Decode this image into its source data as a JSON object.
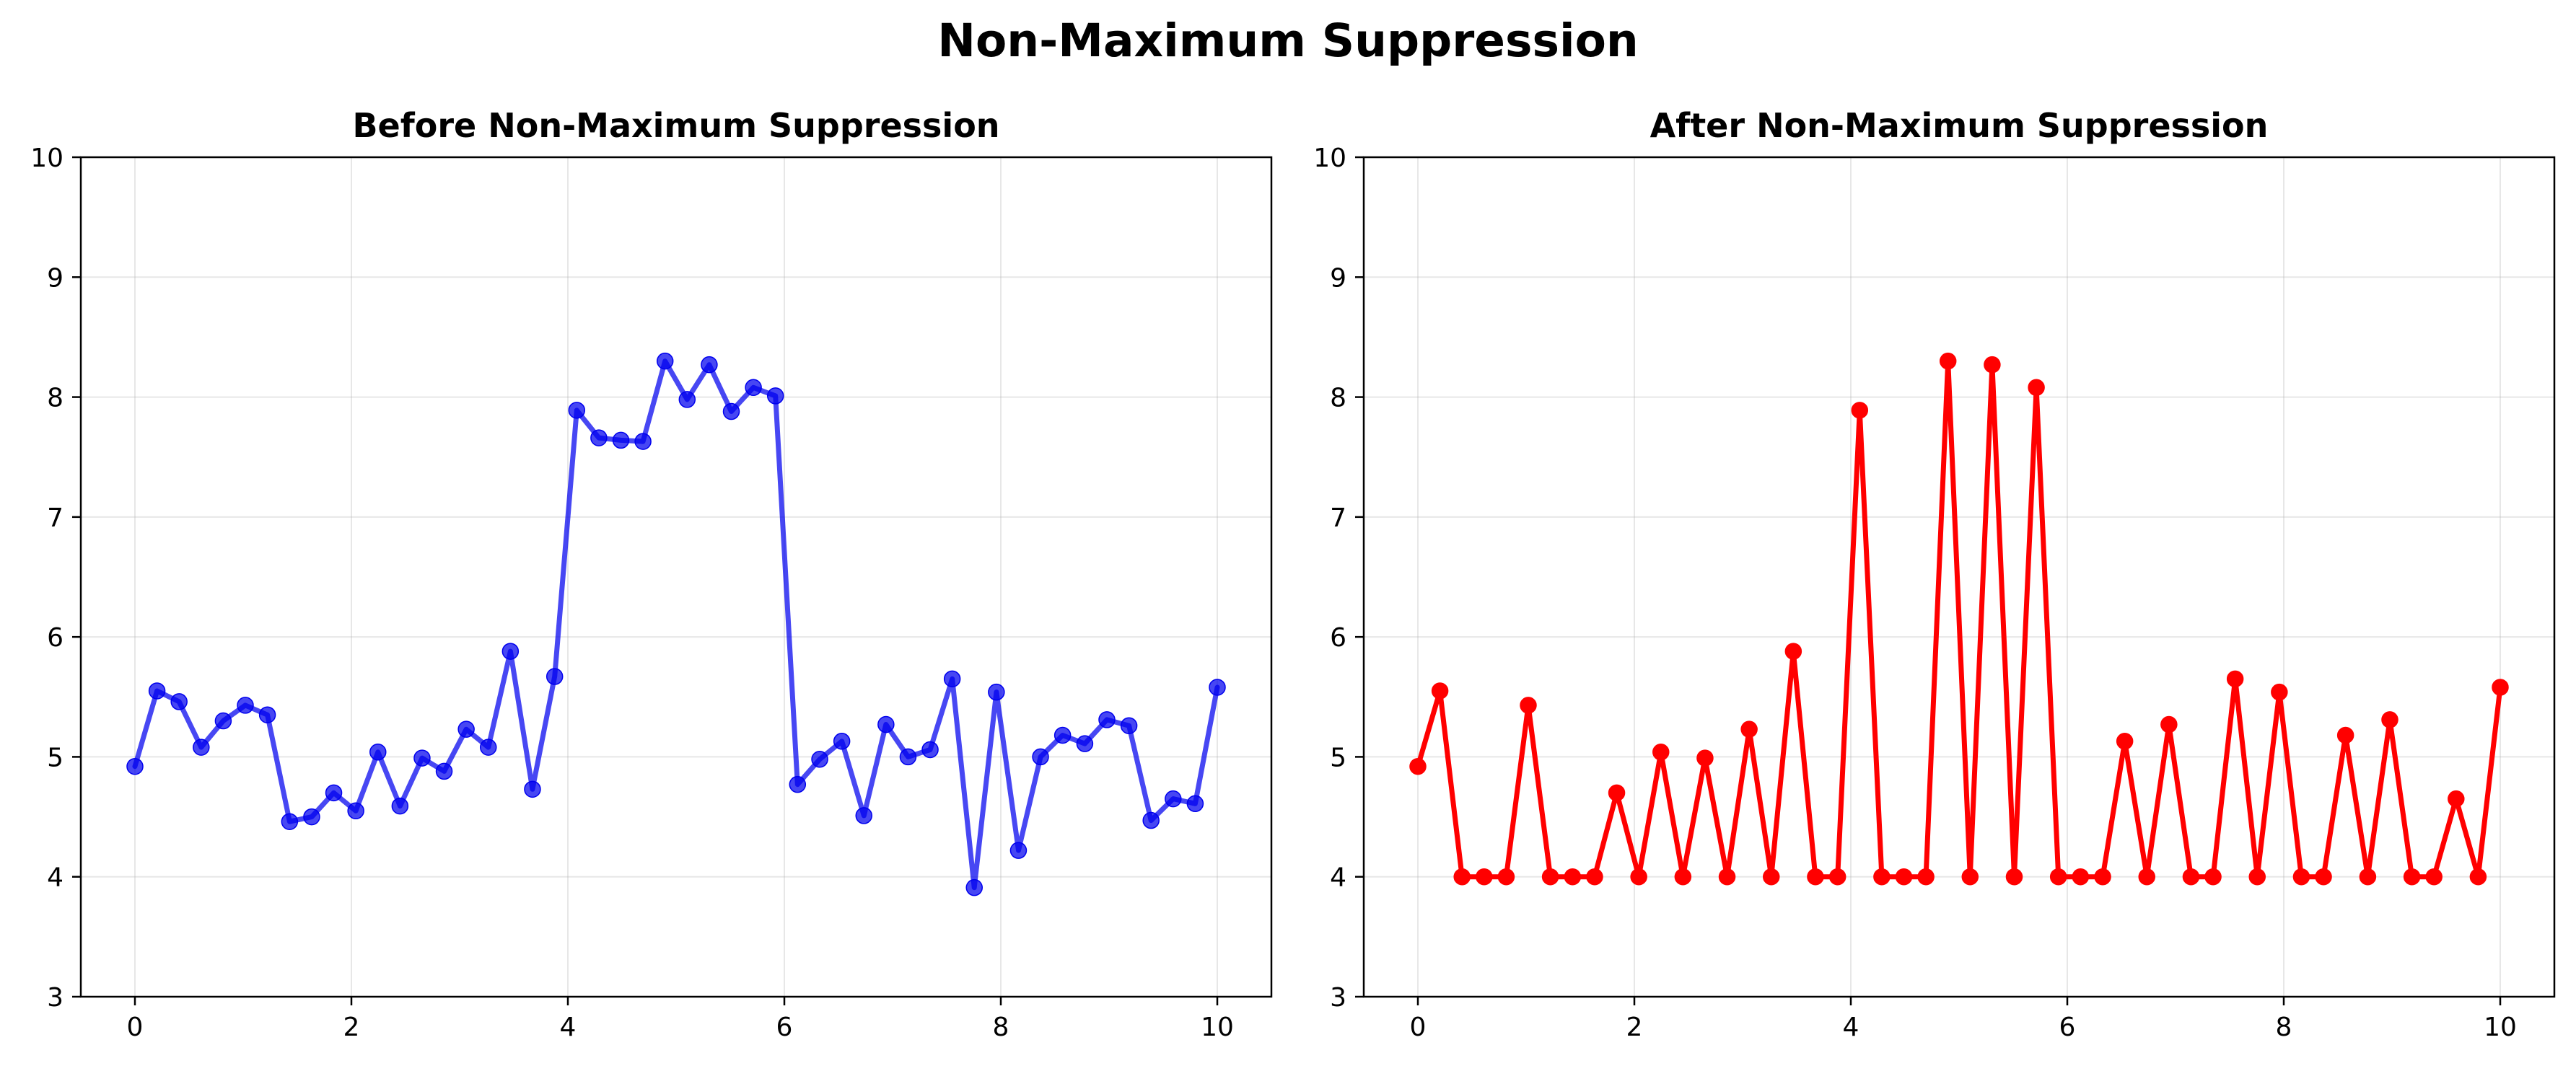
{
  "suptitle": "Non-Maximum Suppression",
  "chart_data": [
    {
      "type": "line",
      "title": "Before Non-Maximum Suppression",
      "xlabel": "",
      "ylabel": "",
      "xlim": [
        -0.5,
        10.5
      ],
      "ylim": [
        3,
        10
      ],
      "xticks": [
        "0",
        "2",
        "4",
        "6",
        "8",
        "10"
      ],
      "yticks": [
        "3",
        "4",
        "5",
        "6",
        "7",
        "8",
        "9",
        "10"
      ],
      "grid": true,
      "color": "#0000ee",
      "x": [
        0,
        0.204,
        0.408,
        0.612,
        0.816,
        1.02,
        1.224,
        1.429,
        1.633,
        1.837,
        2.041,
        2.245,
        2.449,
        2.653,
        2.857,
        3.061,
        3.265,
        3.469,
        3.673,
        3.878,
        4.082,
        4.286,
        4.49,
        4.694,
        4.898,
        5.102,
        5.306,
        5.51,
        5.714,
        5.918,
        6.122,
        6.327,
        6.531,
        6.735,
        6.939,
        7.143,
        7.347,
        7.551,
        7.755,
        7.959,
        8.163,
        8.367,
        8.571,
        8.776,
        8.98,
        9.184,
        9.388,
        9.592,
        9.796,
        10
      ],
      "y": [
        4.92,
        5.55,
        5.46,
        5.08,
        5.3,
        5.43,
        5.35,
        4.46,
        4.5,
        4.7,
        4.55,
        5.04,
        4.59,
        4.99,
        4.88,
        5.23,
        5.08,
        5.88,
        4.73,
        5.67,
        7.89,
        7.66,
        7.64,
        7.63,
        8.3,
        7.98,
        8.27,
        7.88,
        8.08,
        8.01,
        4.77,
        4.98,
        5.13,
        4.51,
        5.27,
        5.0,
        5.06,
        5.65,
        3.91,
        5.54,
        4.22,
        5.0,
        5.18,
        5.11,
        5.31,
        5.26,
        4.47,
        4.65,
        4.61,
        5.58
      ]
    },
    {
      "type": "line",
      "title": "After Non-Maximum Suppression",
      "xlabel": "",
      "ylabel": "",
      "xlim": [
        -0.5,
        10.5
      ],
      "ylim": [
        3,
        10
      ],
      "xticks": [
        "0",
        "2",
        "4",
        "6",
        "8",
        "10"
      ],
      "yticks": [
        "3",
        "4",
        "5",
        "6",
        "7",
        "8",
        "9",
        "10"
      ],
      "grid": true,
      "color": "#ff0000",
      "x": [
        0,
        0.204,
        0.408,
        0.612,
        0.816,
        1.02,
        1.224,
        1.429,
        1.633,
        1.837,
        2.041,
        2.245,
        2.449,
        2.653,
        2.857,
        3.061,
        3.265,
        3.469,
        3.673,
        3.878,
        4.082,
        4.286,
        4.49,
        4.694,
        4.898,
        5.102,
        5.306,
        5.51,
        5.714,
        5.918,
        6.122,
        6.327,
        6.531,
        6.735,
        6.939,
        7.143,
        7.347,
        7.551,
        7.755,
        7.959,
        8.163,
        8.367,
        8.571,
        8.776,
        8.98,
        9.184,
        9.388,
        9.592,
        9.796,
        10
      ],
      "y": [
        4.92,
        5.55,
        4.0,
        4.0,
        4.0,
        5.43,
        4.0,
        4.0,
        4.0,
        4.7,
        4.0,
        5.04,
        4.0,
        4.99,
        4.0,
        5.23,
        4.0,
        5.88,
        4.0,
        4.0,
        7.89,
        4.0,
        4.0,
        4.0,
        8.3,
        4.0,
        8.27,
        4.0,
        8.08,
        4.0,
        4.0,
        4.0,
        5.13,
        4.0,
        5.27,
        4.0,
        4.0,
        5.65,
        4.0,
        5.54,
        4.0,
        4.0,
        5.18,
        4.0,
        5.31,
        4.0,
        4.0,
        4.65,
        4.0,
        5.58
      ]
    }
  ]
}
